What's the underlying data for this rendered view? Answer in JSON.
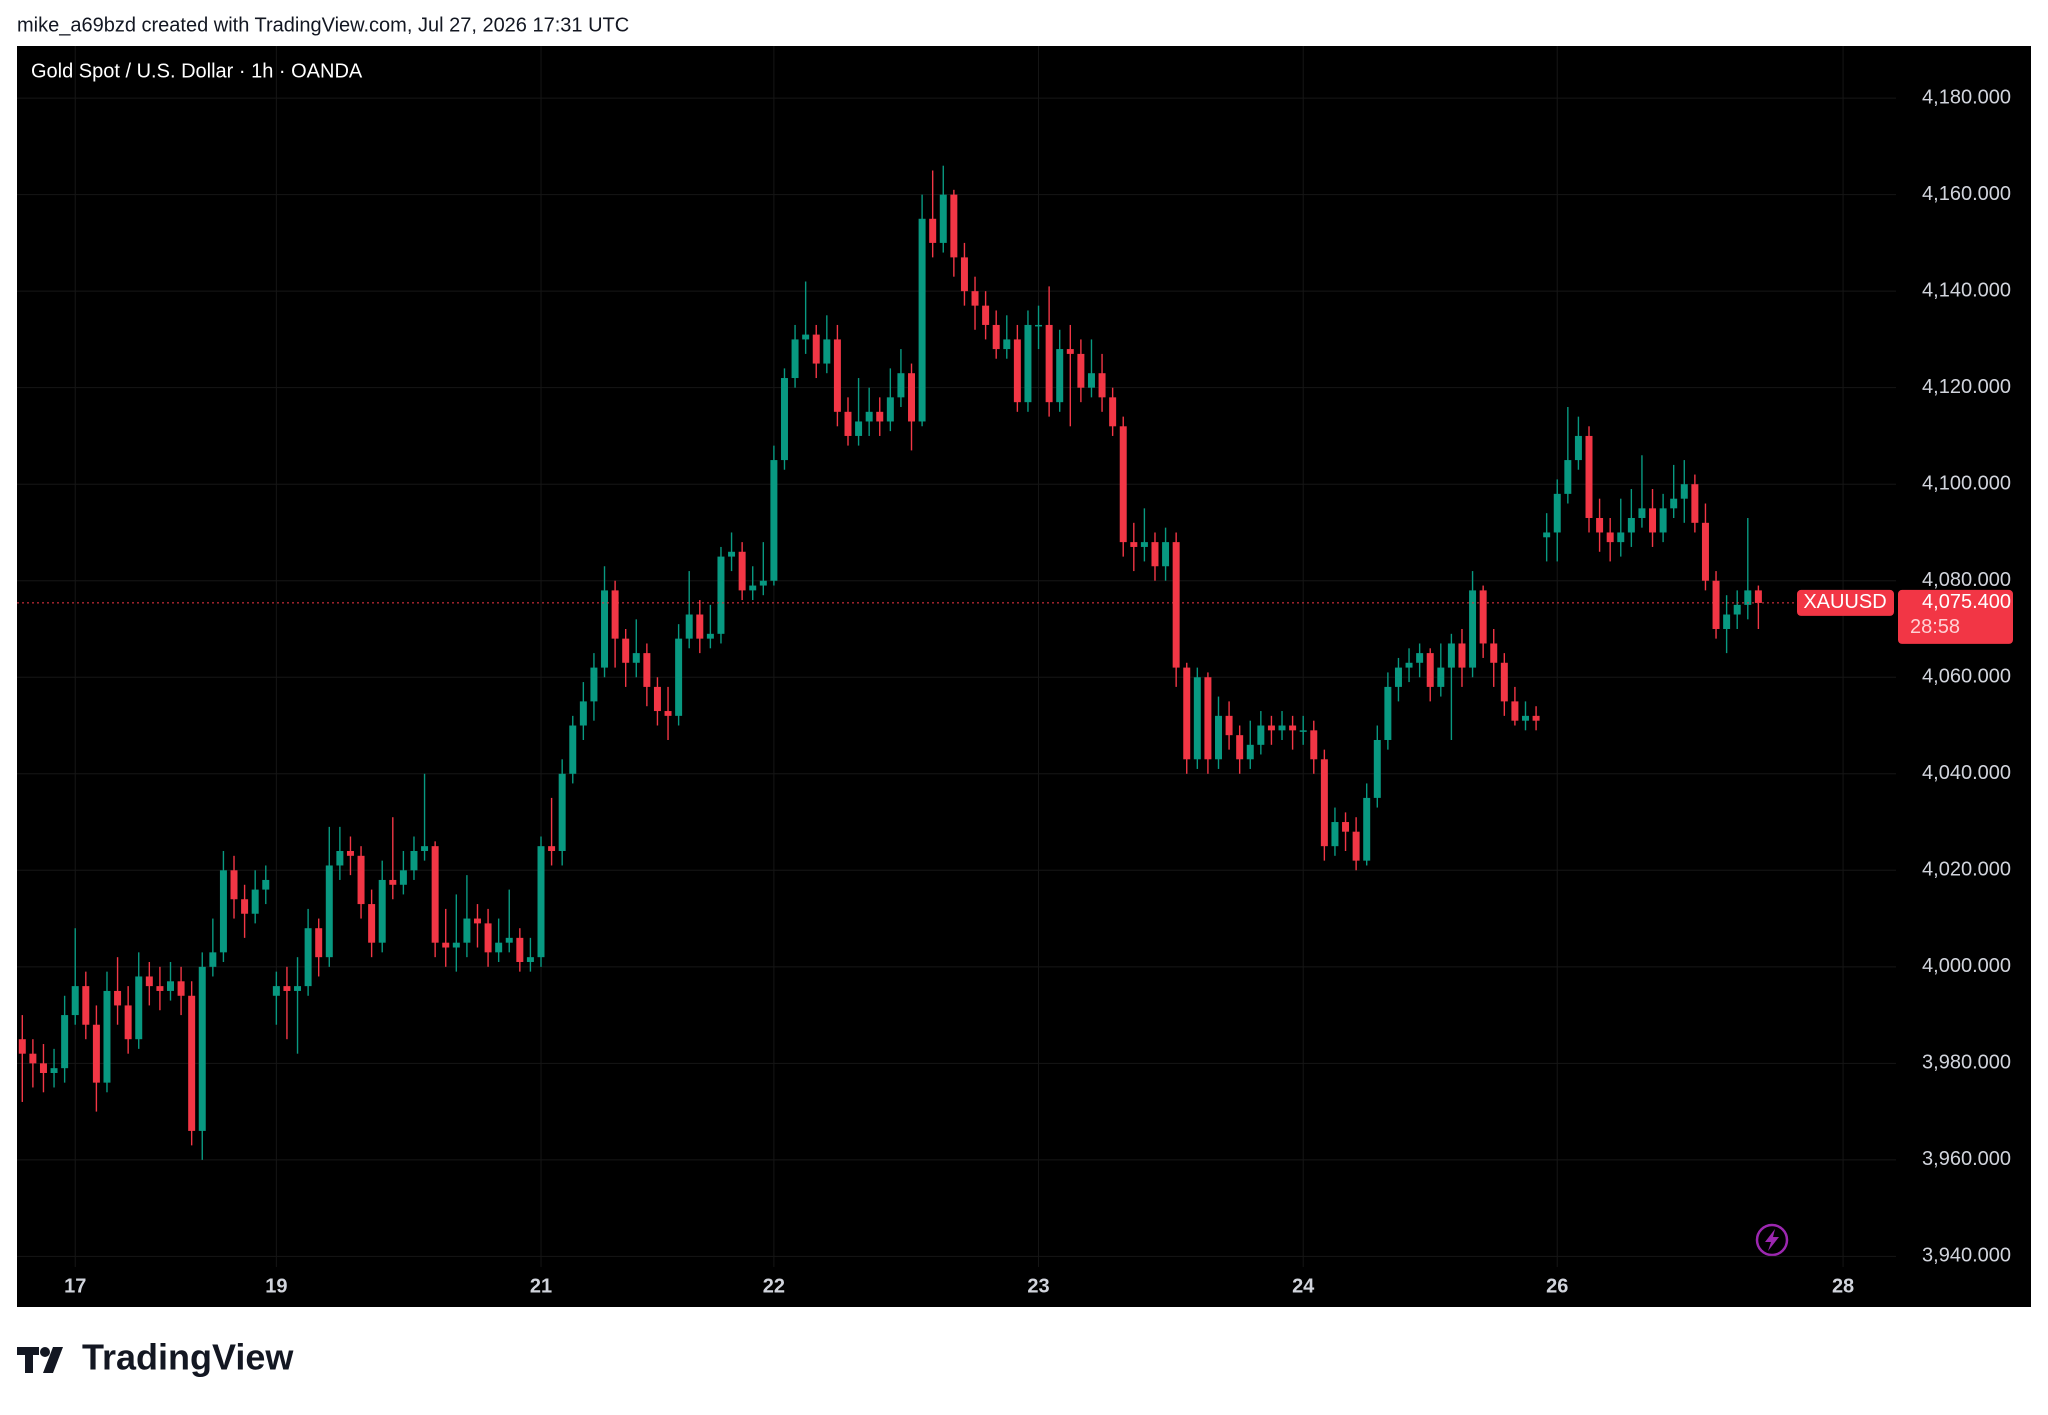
{
  "page": {
    "credit": "mike_a69bzd created with TradingView.com, Jul 27, 2026 17:31 UTC",
    "logo": "TradingView"
  },
  "chart_data": {
    "type": "candlestick",
    "title": "Gold Spot / U.S. Dollar · 1h · OANDA",
    "up_color": "#089981",
    "down_color": "#f23645",
    "grid": true,
    "open": [
      3985,
      3982,
      3980,
      3978,
      3979,
      3990,
      3996,
      3988,
      3976,
      3995,
      3992,
      3985,
      3998,
      3996,
      3995,
      3997,
      3994,
      3966,
      4000,
      4003,
      4020,
      4014,
      4011,
      4016,
      3994,
      3996,
      3995,
      3996,
      4008,
      4002,
      4021,
      4024,
      4023,
      4013,
      4005,
      4018,
      4017,
      4020,
      4024,
      4025,
      4005,
      4004,
      4005,
      4010,
      4009,
      4003,
      4005,
      4006,
      4001,
      4002,
      4025,
      4024,
      4040,
      4050,
      4055,
      4062,
      4078,
      4068,
      4063,
      4065,
      4058,
      4053,
      4052,
      4068,
      4073,
      4068,
      4069,
      4085,
      4086,
      4078,
      4079,
      4080,
      4105,
      4122,
      4130,
      4131,
      4125,
      4130,
      4115,
      4110,
      4113,
      4115,
      4113,
      4118,
      4123,
      4113,
      4155,
      4150,
      4160,
      4147,
      4140,
      4137,
      4133,
      4128,
      4130,
      4117,
      4133,
      4133,
      4117,
      4128,
      4127,
      4120,
      4123,
      4118,
      4112,
      4088,
      4087,
      4088,
      4083,
      4088,
      4062,
      4043,
      4060,
      4043,
      4052,
      4048,
      4043,
      4046,
      4050,
      4049,
      4050,
      4049,
      4049,
      4043,
      4025,
      4030,
      4028,
      4022,
      4035,
      4047,
      4058,
      4062,
      4063,
      4065,
      4058,
      4062,
      4067,
      4062,
      4078,
      4067,
      4063,
      4055,
      4051,
      4052,
      4089,
      4090,
      4098,
      4105,
      4110,
      4093,
      4090,
      4088,
      4090,
      4093,
      4095,
      4090,
      4095,
      4097,
      4100,
      4092,
      4080,
      4070,
      4073,
      4075,
      4078
    ],
    "high": [
      3990,
      3985,
      3984,
      3983,
      3994,
      4008,
      3999,
      3992,
      3999,
      4002,
      3996,
      4003,
      4001,
      4000,
      4001,
      4000,
      3997,
      4003,
      4010,
      4024,
      4023,
      4017,
      4020,
      4021,
      3999,
      4000,
      4002,
      4012,
      4010,
      4029,
      4029,
      4027,
      4025,
      4016,
      4022,
      4031,
      4024,
      4027,
      4040,
      4026,
      4012,
      4015,
      4019,
      4013,
      4012,
      4010,
      4016,
      4008,
      4006,
      4027,
      4035,
      4043,
      4052,
      4059,
      4065,
      4083,
      4080,
      4070,
      4072,
      4067,
      4060,
      4058,
      4071,
      4082,
      4076,
      4075,
      4087,
      4090,
      4088,
      4083,
      4088,
      4108,
      4124,
      4133,
      4142,
      4133,
      4135,
      4133,
      4118,
      4122,
      4120,
      4118,
      4124,
      4128,
      4125,
      4160,
      4165,
      4166,
      4161,
      4150,
      4143,
      4140,
      4136,
      4135,
      4133,
      4136,
      4137,
      4141,
      4132,
      4133,
      4130,
      4130,
      4127,
      4120,
      4114,
      4092,
      4095,
      4090,
      4091,
      4090,
      4063,
      4062,
      4061,
      4056,
      4055,
      4050,
      4051,
      4053,
      4052,
      4053,
      4052,
      4052,
      4051,
      4045,
      4033,
      4032,
      4031,
      4038,
      4050,
      4061,
      4064,
      4066,
      4067,
      4066,
      4067,
      4069,
      4070,
      4082,
      4079,
      4070,
      4065,
      4058,
      4055,
      4054,
      4094,
      4101,
      4116,
      4114,
      4112,
      4097,
      4093,
      4097,
      4099,
      4106,
      4099,
      4098,
      4104,
      4105,
      4102,
      4096,
      4082,
      4077,
      4078,
      4093,
      4079
    ],
    "low": [
      3972,
      3975,
      3974,
      3975,
      3976,
      3988,
      3985,
      3970,
      3974,
      3988,
      3982,
      3983,
      3992,
      3991,
      3993,
      3990,
      3963,
      3960,
      3998,
      4001,
      4010,
      4006,
      4009,
      4013,
      3988,
      3985,
      3982,
      3994,
      3998,
      4000,
      4018,
      4019,
      4010,
      4002,
      4003,
      4014,
      4015,
      4018,
      4022,
      4002,
      4000,
      3999,
      4002,
      4004,
      4000,
      4001,
      4003,
      3999,
      3999,
      4000,
      4021,
      4021,
      4038,
      4047,
      4051,
      4060,
      4062,
      4058,
      4060,
      4054,
      4050,
      4047,
      4050,
      4066,
      4065,
      4066,
      4067,
      4082,
      4076,
      4076,
      4077,
      4079,
      4103,
      4120,
      4127,
      4122,
      4123,
      4112,
      4108,
      4108,
      4110,
      4110,
      4111,
      4116,
      4107,
      4112,
      4147,
      4148,
      4143,
      4137,
      4132,
      4130,
      4126,
      4126,
      4115,
      4115,
      4128,
      4114,
      4115,
      4112,
      4117,
      4118,
      4115,
      4110,
      4085,
      4082,
      4084,
      4080,
      4080,
      4058,
      4040,
      4041,
      4040,
      4041,
      4045,
      4040,
      4041,
      4044,
      4046,
      4047,
      4045,
      4046,
      4040,
      4022,
      4023,
      4024,
      4020,
      4021,
      4033,
      4045,
      4055,
      4059,
      4060,
      4055,
      4056,
      4047,
      4058,
      4060,
      4064,
      4058,
      4052,
      4050,
      4049,
      4049,
      4084,
      4084,
      4096,
      4103,
      4090,
      4086,
      4084,
      4085,
      4087,
      4091,
      4087,
      4088,
      4093,
      4092,
      4090,
      4078,
      4068,
      4065,
      4070,
      4072,
      4070
    ],
    "close": [
      3982,
      3980,
      3978,
      3979,
      3990,
      3996,
      3988,
      3976,
      3995,
      3992,
      3985,
      3998,
      3996,
      3995,
      3997,
      3994,
      3966,
      4000,
      4003,
      4020,
      4014,
      4011,
      4016,
      4018,
      3996,
      3995,
      3996,
      4008,
      4002,
      4021,
      4024,
      4023,
      4013,
      4005,
      4018,
      4017,
      4020,
      4024,
      4025,
      4005,
      4004,
      4005,
      4010,
      4009,
      4003,
      4005,
      4006,
      4001,
      4002,
      4025,
      4024,
      4040,
      4050,
      4055,
      4062,
      4078,
      4068,
      4063,
      4065,
      4058,
      4053,
      4052,
      4068,
      4073,
      4068,
      4069,
      4085,
      4086,
      4078,
      4079,
      4080,
      4105,
      4122,
      4130,
      4131,
      4125,
      4130,
      4115,
      4110,
      4113,
      4115,
      4113,
      4118,
      4123,
      4113,
      4155,
      4150,
      4160,
      4147,
      4140,
      4137,
      4133,
      4128,
      4130,
      4117,
      4133,
      4133,
      4117,
      4128,
      4127,
      4120,
      4123,
      4118,
      4112,
      4088,
      4087,
      4088,
      4083,
      4088,
      4062,
      4043,
      4060,
      4043,
      4052,
      4048,
      4043,
      4046,
      4050,
      4049,
      4050,
      4049,
      4049,
      4043,
      4025,
      4030,
      4028,
      4022,
      4035,
      4047,
      4058,
      4062,
      4063,
      4065,
      4058,
      4062,
      4067,
      4062,
      4078,
      4067,
      4063,
      4055,
      4051,
      4052,
      4051,
      4090,
      4098,
      4105,
      4110,
      4093,
      4090,
      4088,
      4090,
      4093,
      4095,
      4090,
      4095,
      4097,
      4100,
      4092,
      4080,
      4070,
      4073,
      4075,
      4078,
      4075.4
    ],
    "xlim": [
      -0.5,
      177
    ],
    "xticks": [
      {
        "value": 5,
        "label": "17"
      },
      {
        "value": 24,
        "label": "19"
      },
      {
        "value": 49,
        "label": "21"
      },
      {
        "value": 71,
        "label": "22"
      },
      {
        "value": 96,
        "label": "23"
      },
      {
        "value": 121,
        "label": "24"
      },
      {
        "value": 145,
        "label": "26"
      },
      {
        "value": 172,
        "label": "28"
      }
    ],
    "ylim": [
      3937.8,
      4190.8
    ],
    "yticks": [
      {
        "value": 4180,
        "label": "4,180.000"
      },
      {
        "value": 4160,
        "label": "4,160.000"
      },
      {
        "value": 4140,
        "label": "4,140.000"
      },
      {
        "value": 4120,
        "label": "4,120.000"
      },
      {
        "value": 4100,
        "label": "4,100.000"
      },
      {
        "value": 4080,
        "label": "4,080.000"
      },
      {
        "value": 4060,
        "label": "4,060.000"
      },
      {
        "value": 4040,
        "label": "4,040.000"
      },
      {
        "value": 4020,
        "label": "4,020.000"
      },
      {
        "value": 4000,
        "label": "4,000.000"
      },
      {
        "value": 3980,
        "label": "3,980.000"
      },
      {
        "value": 3960,
        "label": "3,960.000"
      },
      {
        "value": 3940,
        "label": "3,940.000"
      }
    ],
    "symbol": "XAUUSD",
    "last_price": {
      "value": 4075.4,
      "label": "4,075.400"
    },
    "countdown": "28:58"
  }
}
